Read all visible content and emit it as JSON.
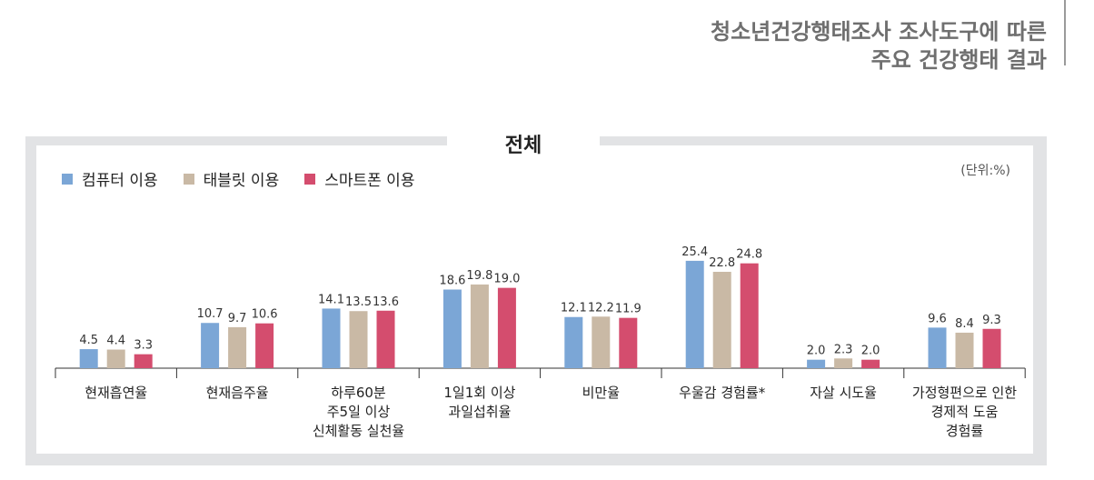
{
  "header": {
    "line1": "청소년건강행태조사 조사도구에 따른",
    "line2": "주요 건강행태 결과"
  },
  "chart_data": {
    "type": "bar",
    "title": "전체",
    "unit_label": "(단위:%)",
    "series": [
      {
        "name": "컴퓨터 이용",
        "color": "#7ba6d6",
        "values": [
          4.5,
          10.7,
          14.1,
          18.6,
          12.1,
          25.4,
          2.0,
          9.6
        ]
      },
      {
        "name": "태블릿 이용",
        "color": "#c9b9a5",
        "values": [
          4.4,
          9.7,
          13.5,
          19.8,
          12.2,
          22.8,
          2.3,
          8.4
        ]
      },
      {
        "name": "스마트폰 이용",
        "color": "#d44d6e",
        "values": [
          3.3,
          10.6,
          13.6,
          19.0,
          11.9,
          24.8,
          2.0,
          9.3
        ]
      }
    ],
    "categories": [
      [
        "현재흡연율"
      ],
      [
        "현재음주율"
      ],
      [
        "하루60분",
        "주5일 이상",
        "신체활동 실천율"
      ],
      [
        "1일1회 이상",
        "과일섭취율"
      ],
      [
        "비만율"
      ],
      [
        "우울감 경험률*"
      ],
      [
        "자살 시도율"
      ],
      [
        "가정형편으로 인한",
        "경제적 도움",
        "경험률"
      ]
    ],
    "ylim": [
      0,
      30
    ],
    "xlabel": "",
    "ylabel": ""
  }
}
